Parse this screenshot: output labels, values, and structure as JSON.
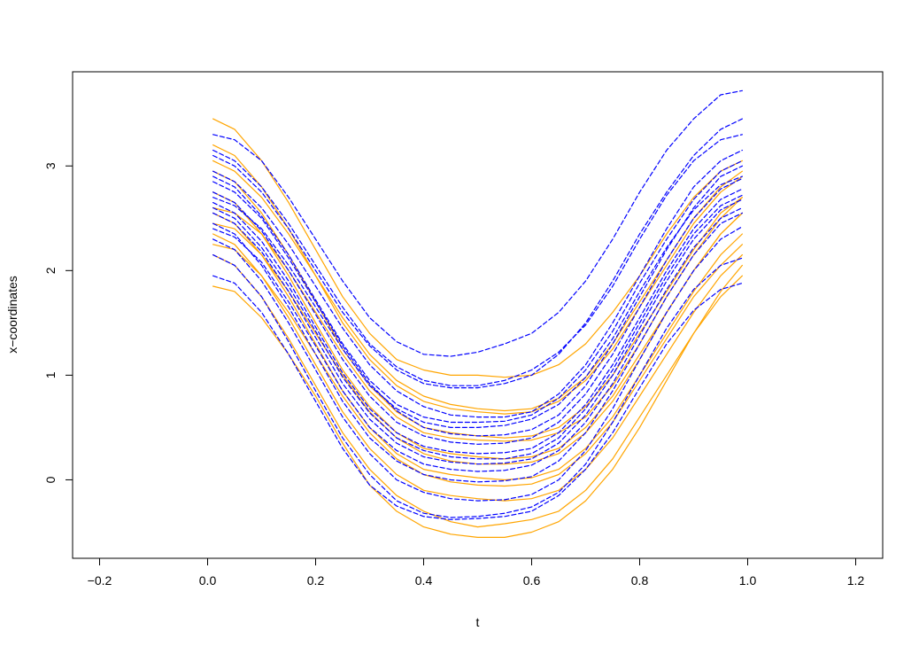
{
  "chart_data": {
    "type": "line",
    "title": "",
    "xlabel": "t",
    "ylabel": "x−coordinates",
    "xlim": [
      -0.25,
      1.25
    ],
    "ylim": [
      -0.75,
      3.9
    ],
    "x_ticks": [
      -0.2,
      0.0,
      0.2,
      0.4,
      0.6,
      0.8,
      1.0,
      1.2
    ],
    "x_tick_labels": [
      "−0.2",
      "0.0",
      "0.2",
      "0.4",
      "0.6",
      "0.8",
      "1.0",
      "1.2"
    ],
    "y_ticks": [
      0,
      1,
      2,
      3
    ],
    "y_tick_labels": [
      "0",
      "1",
      "2",
      "3"
    ],
    "grid": false,
    "legend": "none",
    "colors": {
      "orange": "#FFA500",
      "blue": "#0000FF"
    },
    "x": [
      0.01,
      0.05,
      0.1,
      0.15,
      0.2,
      0.25,
      0.3,
      0.35,
      0.4,
      0.45,
      0.5,
      0.55,
      0.6,
      0.65,
      0.7,
      0.75,
      0.8,
      0.85,
      0.9,
      0.95,
      0.99
    ],
    "series": [
      {
        "group": "orange",
        "values": [
          3.45,
          3.35,
          3.05,
          2.65,
          2.2,
          1.75,
          1.4,
          1.15,
          1.05,
          1.0,
          1.0,
          0.98,
          1.0,
          1.1,
          1.3,
          1.6,
          1.95,
          2.35,
          2.7,
          2.95,
          3.05
        ]
      },
      {
        "group": "orange",
        "values": [
          3.2,
          3.1,
          2.8,
          2.4,
          1.95,
          1.5,
          1.15,
          0.9,
          0.75,
          0.68,
          0.65,
          0.63,
          0.65,
          0.75,
          0.95,
          1.25,
          1.65,
          2.05,
          2.45,
          2.75,
          2.9
        ]
      },
      {
        "group": "orange",
        "values": [
          2.95,
          2.85,
          2.55,
          2.15,
          1.7,
          1.25,
          0.9,
          0.65,
          0.5,
          0.45,
          0.42,
          0.4,
          0.42,
          0.5,
          0.7,
          1.0,
          1.4,
          1.8,
          2.2,
          2.55,
          2.7
        ]
      },
      {
        "group": "orange",
        "values": [
          2.75,
          2.65,
          2.35,
          1.95,
          1.5,
          1.05,
          0.7,
          0.45,
          0.3,
          0.25,
          0.22,
          0.2,
          0.22,
          0.3,
          0.5,
          0.8,
          1.2,
          1.6,
          2.0,
          2.35,
          2.55
        ]
      },
      {
        "group": "orange",
        "values": [
          2.55,
          2.45,
          2.15,
          1.75,
          1.3,
          0.85,
          0.5,
          0.25,
          0.1,
          0.05,
          0.02,
          0.0,
          0.02,
          0.1,
          0.3,
          0.6,
          1.0,
          1.4,
          1.8,
          2.15,
          2.35
        ]
      },
      {
        "group": "orange",
        "values": [
          2.35,
          2.25,
          1.95,
          1.55,
          1.1,
          0.65,
          0.3,
          0.05,
          -0.1,
          -0.15,
          -0.18,
          -0.2,
          -0.18,
          -0.1,
          0.1,
          0.4,
          0.8,
          1.2,
          1.6,
          1.95,
          2.15
        ]
      },
      {
        "group": "orange",
        "values": [
          2.15,
          2.05,
          1.75,
          1.35,
          0.9,
          0.45,
          0.1,
          -0.15,
          -0.3,
          -0.4,
          -0.45,
          -0.42,
          -0.38,
          -0.3,
          -0.1,
          0.2,
          0.6,
          1.0,
          1.4,
          1.75,
          1.95
        ]
      },
      {
        "group": "orange",
        "values": [
          1.85,
          1.8,
          1.55,
          1.2,
          0.8,
          0.35,
          -0.05,
          -0.3,
          -0.45,
          -0.52,
          -0.55,
          -0.55,
          -0.5,
          -0.4,
          -0.2,
          0.1,
          0.5,
          0.95,
          1.4,
          1.8,
          2.05
        ]
      },
      {
        "group": "orange",
        "values": [
          2.6,
          2.55,
          2.35,
          2.0,
          1.6,
          1.2,
          0.85,
          0.6,
          0.45,
          0.4,
          0.38,
          0.37,
          0.38,
          0.45,
          0.6,
          0.9,
          1.3,
          1.75,
          2.15,
          2.5,
          2.7
        ]
      },
      {
        "group": "orange",
        "values": [
          2.45,
          2.4,
          2.15,
          1.8,
          1.4,
          1.0,
          0.65,
          0.4,
          0.25,
          0.18,
          0.15,
          0.15,
          0.17,
          0.25,
          0.45,
          0.75,
          1.15,
          1.6,
          2.0,
          2.35,
          2.55
        ]
      },
      {
        "group": "orange",
        "values": [
          3.05,
          2.95,
          2.7,
          2.35,
          1.95,
          1.55,
          1.2,
          0.95,
          0.8,
          0.72,
          0.68,
          0.66,
          0.68,
          0.78,
          0.98,
          1.3,
          1.7,
          2.1,
          2.5,
          2.8,
          2.95
        ]
      },
      {
        "group": "orange",
        "values": [
          2.25,
          2.2,
          1.95,
          1.6,
          1.2,
          0.8,
          0.45,
          0.2,
          0.05,
          -0.02,
          -0.05,
          -0.06,
          -0.04,
          0.05,
          0.25,
          0.55,
          0.95,
          1.35,
          1.75,
          2.05,
          2.25
        ]
      },
      {
        "group": "blue",
        "values": [
          3.3,
          3.25,
          3.05,
          2.7,
          2.3,
          1.9,
          1.55,
          1.32,
          1.2,
          1.18,
          1.22,
          1.3,
          1.4,
          1.6,
          1.9,
          2.3,
          2.75,
          3.15,
          3.45,
          3.68,
          3.72
        ]
      },
      {
        "group": "blue",
        "values": [
          3.1,
          3.0,
          2.75,
          2.4,
          2.0,
          1.6,
          1.28,
          1.05,
          0.92,
          0.88,
          0.88,
          0.92,
          1.0,
          1.2,
          1.5,
          1.9,
          2.35,
          2.75,
          3.1,
          3.35,
          3.45
        ]
      },
      {
        "group": "blue",
        "values": [
          2.95,
          2.85,
          2.6,
          2.25,
          1.85,
          1.45,
          1.1,
          0.85,
          0.7,
          0.62,
          0.6,
          0.6,
          0.65,
          0.82,
          1.1,
          1.5,
          1.95,
          2.4,
          2.8,
          3.05,
          3.15
        ]
      },
      {
        "group": "blue",
        "values": [
          2.85,
          2.75,
          2.5,
          2.12,
          1.7,
          1.28,
          0.92,
          0.66,
          0.5,
          0.44,
          0.42,
          0.43,
          0.48,
          0.62,
          0.9,
          1.3,
          1.75,
          2.2,
          2.6,
          2.9,
          3.0
        ]
      },
      {
        "group": "blue",
        "values": [
          2.75,
          2.65,
          2.38,
          2.0,
          1.58,
          1.15,
          0.8,
          0.55,
          0.42,
          0.36,
          0.34,
          0.35,
          0.4,
          0.55,
          0.82,
          1.2,
          1.65,
          2.1,
          2.5,
          2.78,
          2.88
        ]
      },
      {
        "group": "blue",
        "values": [
          2.65,
          2.55,
          2.28,
          1.9,
          1.46,
          1.02,
          0.68,
          0.45,
          0.32,
          0.27,
          0.25,
          0.26,
          0.3,
          0.45,
          0.72,
          1.1,
          1.55,
          2.0,
          2.4,
          2.68,
          2.78
        ]
      },
      {
        "group": "blue",
        "values": [
          2.55,
          2.45,
          2.18,
          1.8,
          1.36,
          0.92,
          0.58,
          0.35,
          0.22,
          0.17,
          0.15,
          0.16,
          0.2,
          0.35,
          0.62,
          1.0,
          1.45,
          1.9,
          2.3,
          2.58,
          2.68
        ]
      },
      {
        "group": "blue",
        "values": [
          2.45,
          2.35,
          2.05,
          1.65,
          1.2,
          0.75,
          0.4,
          0.18,
          0.05,
          0.0,
          -0.02,
          -0.01,
          0.03,
          0.18,
          0.45,
          0.85,
          1.3,
          1.75,
          2.15,
          2.45,
          2.55
        ]
      },
      {
        "group": "blue",
        "values": [
          2.3,
          2.2,
          1.9,
          1.5,
          1.05,
          0.6,
          0.25,
          0.0,
          -0.12,
          -0.18,
          -0.2,
          -0.19,
          -0.14,
          0.0,
          0.28,
          0.68,
          1.15,
          1.6,
          2.0,
          2.3,
          2.42
        ]
      },
      {
        "group": "blue",
        "values": [
          2.15,
          2.05,
          1.75,
          1.32,
          0.85,
          0.4,
          0.05,
          -0.2,
          -0.32,
          -0.36,
          -0.35,
          -0.32,
          -0.26,
          -0.12,
          0.15,
          0.55,
          1.0,
          1.45,
          1.82,
          2.05,
          2.12
        ]
      },
      {
        "group": "blue",
        "values": [
          1.95,
          1.88,
          1.6,
          1.2,
          0.75,
          0.3,
          -0.05,
          -0.25,
          -0.35,
          -0.38,
          -0.37,
          -0.35,
          -0.3,
          -0.15,
          0.1,
          0.45,
          0.88,
          1.3,
          1.62,
          1.82,
          1.88
        ]
      },
      {
        "group": "blue",
        "values": [
          3.15,
          3.05,
          2.8,
          2.45,
          2.05,
          1.65,
          1.3,
          1.08,
          0.95,
          0.9,
          0.9,
          0.95,
          1.05,
          1.22,
          1.48,
          1.85,
          2.3,
          2.72,
          3.05,
          3.25,
          3.3
        ]
      },
      {
        "group": "blue",
        "values": [
          2.7,
          2.62,
          2.4,
          2.05,
          1.65,
          1.25,
          0.9,
          0.68,
          0.55,
          0.5,
          0.5,
          0.52,
          0.58,
          0.72,
          0.98,
          1.35,
          1.8,
          2.22,
          2.58,
          2.82,
          2.9
        ]
      },
      {
        "group": "blue",
        "values": [
          2.6,
          2.5,
          2.22,
          1.85,
          1.42,
          0.98,
          0.64,
          0.4,
          0.28,
          0.22,
          0.2,
          0.2,
          0.25,
          0.4,
          0.68,
          1.05,
          1.5,
          1.95,
          2.35,
          2.62,
          2.72
        ]
      },
      {
        "group": "blue",
        "values": [
          2.4,
          2.32,
          2.08,
          1.7,
          1.28,
          0.85,
          0.5,
          0.28,
          0.15,
          0.1,
          0.08,
          0.09,
          0.14,
          0.28,
          0.55,
          0.92,
          1.38,
          1.82,
          2.22,
          2.5,
          2.6
        ]
      },
      {
        "group": "blue",
        "values": [
          2.9,
          2.8,
          2.52,
          2.15,
          1.72,
          1.3,
          0.95,
          0.72,
          0.6,
          0.55,
          0.55,
          0.56,
          0.62,
          0.78,
          1.05,
          1.42,
          1.88,
          2.3,
          2.68,
          2.95,
          3.05
        ]
      }
    ]
  }
}
